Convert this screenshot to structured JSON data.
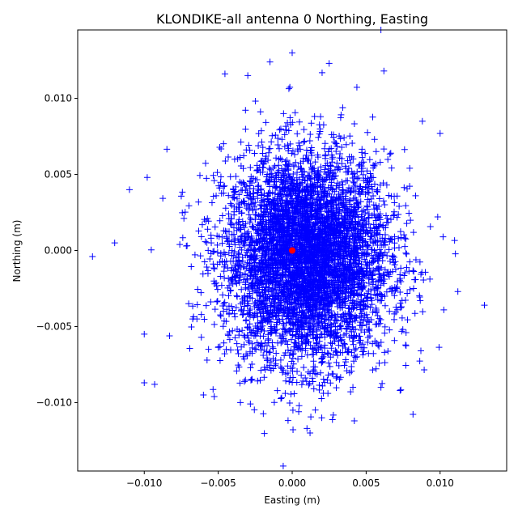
{
  "chart_data": {
    "type": "scatter",
    "title": "KLONDIKE-all antenna 0 Northing, Easting",
    "xlabel": "Easting (m)",
    "ylabel": "Northing (m)",
    "xlim": [
      -0.0145,
      0.0145
    ],
    "ylim": [
      -0.0145,
      0.0145
    ],
    "xticks": [
      -0.01,
      -0.005,
      0.0,
      0.005,
      0.01
    ],
    "yticks": [
      -0.01,
      -0.005,
      0.0,
      0.005,
      0.01
    ],
    "xtick_labels": [
      "−0.010",
      "−0.005",
      "0.000",
      "0.005",
      "0.010"
    ],
    "ytick_labels": [
      "−0.010",
      "−0.005",
      "0.000",
      "0.005",
      "0.010"
    ],
    "grid": false,
    "series": [
      {
        "marker": "plus",
        "color": "#0000ff",
        "distribution": "approx. bivariate normal, centered near (0.001, -0.0005) m",
        "x_std": 0.0028,
        "y_std": 0.0034,
        "sample_points": [
          {
            "x": -0.0135,
            "y": -0.0004
          },
          {
            "x": -0.012,
            "y": 0.0005
          },
          {
            "x": -0.011,
            "y": 0.004
          },
          {
            "x": -0.01,
            "y": -0.0055
          },
          {
            "x": -0.01,
            "y": -0.0087
          },
          {
            "x": -0.0093,
            "y": -0.0088
          },
          {
            "x": -0.0098,
            "y": 0.0048
          },
          {
            "x": -0.003,
            "y": 0.0115
          },
          {
            "x": -0.0015,
            "y": 0.0124
          },
          {
            "x": 0.0,
            "y": 0.013
          },
          {
            "x": 0.0025,
            "y": 0.0123
          },
          {
            "x": 0.006,
            "y": 0.0145
          },
          {
            "x": 0.0062,
            "y": 0.0118
          },
          {
            "x": 0.0088,
            "y": 0.0085
          },
          {
            "x": 0.01,
            "y": 0.0077
          },
          {
            "x": 0.0112,
            "y": -0.0027
          },
          {
            "x": 0.0102,
            "y": 0.0009
          },
          {
            "x": 0.0087,
            "y": -0.0066
          },
          {
            "x": 0.006,
            "y": -0.009
          },
          {
            "x": 0.0042,
            "y": -0.0112
          },
          {
            "x": 0.001,
            "y": -0.0117
          },
          {
            "x": 0.002,
            "y": -0.011
          },
          {
            "x": -0.0035,
            "y": -0.01
          },
          {
            "x": -0.006,
            "y": -0.0095
          }
        ]
      },
      {
        "name": "",
        "marker": "circle",
        "color": "#ff0000",
        "points": [
          {
            "x": 0.0,
            "y": 0.0
          }
        ]
      }
    ]
  }
}
